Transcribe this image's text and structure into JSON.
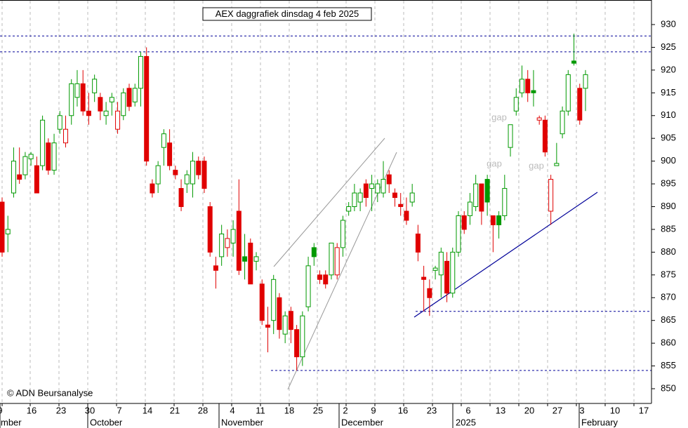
{
  "chart_data": {
    "type": "candlestick",
    "title": "AEX daggrafiek dinsdag 4 feb 2025",
    "copyright": "© ADN Beursanalyse",
    "annotations": [
      "gap",
      "gap",
      "gap"
    ],
    "day_labels": [
      "9",
      "16",
      "23",
      "30",
      "7",
      "14",
      "21",
      "28",
      "4",
      "11",
      "18",
      "25",
      "2",
      "9",
      "16",
      "23",
      "6",
      "13",
      "20",
      "27",
      "3",
      "10",
      "17"
    ],
    "month_labels": [
      "mber",
      "October",
      "November",
      "December",
      "2025",
      "February"
    ],
    "ylim": [
      847,
      935
    ],
    "yticks": [
      850,
      855,
      860,
      865,
      870,
      875,
      880,
      885,
      890,
      895,
      900,
      905,
      910,
      915,
      920,
      925,
      930
    ],
    "levels": [
      927.5,
      924,
      867,
      854
    ],
    "up_color": "#009900",
    "down_color": "#e00000",
    "level_color": "#000099",
    "grid": true,
    "candles": {
      "open": [
        891,
        884,
        893,
        897,
        897,
        900.5,
        899,
        899,
        904,
        898,
        907,
        904,
        910,
        914,
        917,
        911,
        915,
        914,
        910,
        913,
        907,
        910,
        916,
        913,
        916,
        923,
        895,
        895,
        903,
        904,
        898,
        894,
        895,
        895,
        900,
        900,
        890,
        877,
        879,
        881,
        882,
        889,
        879,
        882,
        878,
        873,
        864,
        865,
        870,
        862,
        867,
        863,
        857,
        868,
        881,
        875,
        875,
        875,
        875,
        881,
        889,
        890,
        891,
        895,
        894,
        893,
        893,
        897,
        893,
        890.5,
        889,
        891,
        884,
        874.5,
        872,
        876,
        875,
        878,
        871,
        880,
        888,
        888,
        890,
        895,
        896,
        888,
        888,
        888,
        903,
        911,
        915,
        918,
        915.5,
        909,
        909,
        889,
        899,
        906,
        911,
        922,
        916,
        916
      ],
      "high": [
        892,
        888,
        903,
        903,
        902,
        902,
        901,
        910,
        905,
        906,
        911,
        910,
        918,
        920,
        920,
        915,
        919,
        915,
        913,
        915,
        913,
        916,
        917,
        917,
        924,
        925,
        896,
        900,
        907,
        907,
        899,
        896,
        898,
        902,
        901,
        901,
        891,
        879,
        886,
        885,
        887,
        896,
        884,
        883,
        880,
        874,
        868,
        875,
        871,
        867,
        868,
        864,
        867,
        879,
        882,
        876,
        876,
        882,
        882,
        888,
        891,
        895,
        894,
        896,
        897,
        896,
        900,
        898,
        894,
        893,
        892,
        895,
        886,
        877,
        874,
        877,
        881,
        880,
        881,
        889,
        889,
        893,
        897,
        895,
        897,
        888,
        889,
        897,
        908,
        916,
        921,
        920,
        920,
        910,
        910,
        897,
        904,
        912,
        920,
        928,
        917,
        920
      ],
      "low": [
        879,
        880,
        892,
        895,
        896,
        899,
        893,
        898,
        897,
        897,
        906,
        903,
        908,
        912,
        910,
        908,
        913,
        909,
        908,
        910,
        906,
        909,
        911,
        912,
        912,
        899,
        892,
        893,
        899,
        898,
        896,
        889,
        893,
        892,
        896,
        893,
        879,
        872,
        877,
        879,
        879,
        875,
        874,
        873,
        876,
        864,
        858,
        862,
        861,
        860,
        860,
        854,
        855,
        867,
        877,
        873,
        872,
        874,
        874,
        879,
        888,
        889,
        889,
        890,
        889,
        891,
        892,
        893,
        890,
        888,
        886,
        890,
        878,
        867,
        866,
        874,
        870,
        869,
        870,
        879,
        884,
        886,
        889,
        886,
        888,
        880,
        883,
        887,
        901,
        910,
        914,
        913,
        912,
        908,
        901,
        886,
        899,
        905,
        910,
        921,
        908,
        911
      ],
      "close": [
        880,
        885,
        900,
        896,
        901,
        901.5,
        893,
        909,
        898,
        904,
        910,
        907,
        917,
        917,
        911,
        910,
        918,
        911,
        911,
        914,
        911,
        915,
        912,
        916,
        923,
        900,
        893,
        899,
        906,
        899,
        897,
        890,
        897,
        900,
        897,
        894,
        880,
        876,
        884,
        883,
        885,
        876,
        878,
        873,
        879,
        865,
        863.5,
        874,
        863,
        866,
        863,
        857,
        866,
        877,
        879,
        874,
        873,
        882,
        881,
        887,
        890,
        893,
        893,
        892,
        895,
        895,
        896,
        895,
        892,
        890,
        887,
        893,
        880,
        874,
        870,
        876.5,
        880,
        871,
        880,
        888,
        885,
        891,
        895,
        889,
        891,
        886,
        886,
        894,
        908,
        914,
        918,
        915,
        915,
        909.5,
        902,
        896,
        899.5,
        911,
        919,
        921.5,
        909,
        919
      ]
    }
  }
}
